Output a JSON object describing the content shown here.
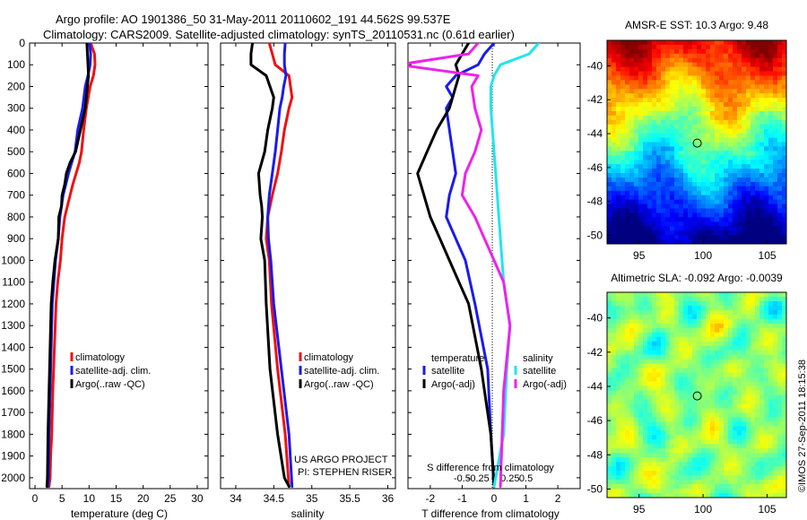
{
  "header": {
    "line1": "Argo profile: AO 1901386_50 31-May-2011 20110602_191 44.562S 99.537E",
    "line2": "Climatology: CARS2009. Satellite-adjusted climatology: synTS_20110531.nc (0.61d earlier)"
  },
  "stamp": "©IMOS 27-Sep-2011 18:15:38",
  "colors": {
    "climatology": "#ee1111",
    "satellite": "#1a1aee",
    "argo": "#000000",
    "sal_satellite": "#22e5ee",
    "sal_argo": "#ee22ee"
  },
  "chart_data": [
    {
      "type": "line",
      "panel": "temperature",
      "xlabel": "temperature (deg C)",
      "ylabel": "",
      "xlim": [
        -1,
        32
      ],
      "ylim": [
        2050,
        0
      ],
      "y_reversed": true,
      "xticks": [
        0,
        5,
        10,
        15,
        20,
        25,
        30
      ],
      "yticks": [
        0,
        100,
        200,
        300,
        400,
        500,
        600,
        700,
        800,
        900,
        1000,
        1100,
        1200,
        1300,
        1400,
        1500,
        1600,
        1700,
        1800,
        1900,
        2000
      ],
      "legend": {
        "position": "lower-middle",
        "entries": [
          "climatology",
          "satellite-adj. clim.",
          "Argo(..raw -QC)"
        ]
      },
      "series": [
        {
          "name": "climatology",
          "color": "#ee1111",
          "x": [
            10.3,
            11.0,
            11.1,
            10.8,
            10.2,
            9.5,
            9.0,
            8.6,
            8.2,
            7.6,
            7.0,
            6.5,
            6.0,
            5.5,
            5.0,
            4.7,
            4.2,
            3.9,
            3.6,
            3.3,
            3.1,
            2.9,
            2.8,
            2.6
          ],
          "y": [
            0,
            50,
            100,
            150,
            200,
            300,
            400,
            500,
            550,
            600,
            650,
            700,
            750,
            800,
            900,
            1000,
            1100,
            1200,
            1400,
            1600,
            1800,
            1900,
            2000,
            2040
          ]
        },
        {
          "name": "satellite-adj. clim.",
          "color": "#1a1aee",
          "x": [
            10.1,
            10.3,
            10.2,
            9.8,
            9.3,
            8.8,
            7.9,
            7.4,
            6.8,
            6.2,
            5.7,
            5.2,
            4.9,
            4.6,
            4.3,
            3.8,
            3.5,
            3.2,
            3.0,
            2.8,
            2.6,
            2.5,
            2.4
          ],
          "y": [
            0,
            50,
            100,
            150,
            200,
            300,
            400,
            500,
            550,
            600,
            650,
            700,
            750,
            800,
            900,
            1000,
            1100,
            1200,
            1400,
            1600,
            1800,
            2000,
            2040
          ]
        },
        {
          "name": "Argo(..raw -QC)",
          "color": "#000000",
          "x": [
            9.6,
            9.7,
            9.8,
            9.9,
            9.7,
            9.3,
            8.4,
            7.5,
            6.5,
            5.8,
            5.5,
            5.0,
            4.9,
            4.4,
            4.3,
            3.7,
            3.3,
            3.0,
            2.8,
            2.6,
            2.4,
            2.3,
            2.2
          ],
          "y": [
            0,
            50,
            100,
            150,
            200,
            300,
            400,
            500,
            550,
            600,
            650,
            700,
            750,
            800,
            900,
            1000,
            1100,
            1200,
            1400,
            1600,
            1800,
            2000,
            2040
          ]
        }
      ]
    },
    {
      "type": "line",
      "panel": "salinity",
      "xlabel": "salinity",
      "ylabel": "",
      "xlim": [
        33.8,
        36.1
      ],
      "ylim": [
        2050,
        0
      ],
      "y_reversed": true,
      "xticks": [
        34,
        34.5,
        35,
        35.5,
        36
      ],
      "tick_labels": [
        "34",
        "34.5",
        "35",
        "35.5",
        "36"
      ],
      "legend": {
        "position": "lower-right",
        "entries": [
          "climatology",
          "satellite-adj. clim.",
          "Argo(..raw -QC)"
        ]
      },
      "annotation": [
        "US ARGO PROJECT",
        "PI: STEPHEN RISER"
      ],
      "series": [
        {
          "name": "climatology",
          "color": "#ee1111",
          "x": [
            34.44,
            34.48,
            34.52,
            34.7,
            34.72,
            34.74,
            34.7,
            34.64,
            34.6,
            34.55,
            34.48,
            34.42,
            34.4,
            34.44,
            34.47,
            34.55,
            34.65,
            34.7
          ],
          "y": [
            0,
            50,
            100,
            150,
            200,
            250,
            300,
            400,
            500,
            600,
            700,
            800,
            900,
            1000,
            1200,
            1500,
            1800,
            2040
          ]
        },
        {
          "name": "satellite-adj. clim.",
          "color": "#1a1aee",
          "x": [
            34.65,
            34.64,
            34.64,
            34.66,
            34.63,
            34.61,
            34.58,
            34.55,
            34.52,
            34.48,
            34.44,
            34.42,
            34.43,
            34.46,
            34.5,
            34.6,
            34.7,
            34.74
          ],
          "y": [
            0,
            50,
            100,
            150,
            200,
            250,
            300,
            400,
            500,
            600,
            700,
            800,
            900,
            1000,
            1200,
            1500,
            1800,
            2040
          ]
        },
        {
          "name": "Argo(..raw -QC)",
          "color": "#000000",
          "x": [
            34.22,
            34.2,
            34.2,
            34.4,
            34.45,
            34.5,
            34.48,
            34.42,
            34.38,
            34.3,
            34.32,
            34.34,
            34.35,
            34.33,
            34.38,
            34.4,
            34.45,
            34.55,
            34.64,
            34.7
          ],
          "y": [
            0,
            50,
            100,
            150,
            200,
            250,
            300,
            400,
            500,
            600,
            700,
            750,
            800,
            900,
            1000,
            1200,
            1500,
            1800,
            2000,
            2040
          ]
        }
      ]
    },
    {
      "type": "line",
      "panel": "difference",
      "xlabel": "T difference from climatology",
      "xlabel2": "S difference from climatology",
      "ylabel": "",
      "xlim": [
        -2.7,
        2.7
      ],
      "ylim": [
        2050,
        0
      ],
      "y_reversed": true,
      "xticks": [
        -2,
        -1,
        0,
        1,
        2
      ],
      "tick_labels": [
        "-2",
        "-1",
        "0",
        "1",
        "2"
      ],
      "xticks2_labels": [
        "-0.5",
        "-0.25",
        "0",
        "0.25",
        "0.5"
      ],
      "legend": {
        "position": "lower-middle",
        "groups": [
          "temperature",
          "salinity"
        ],
        "entries": [
          "satellite",
          "Argo(-adj)",
          "satellite",
          "Argo(-adj)"
        ]
      },
      "series": [
        {
          "name": "satellite",
          "group": "temperature",
          "color": "#1a1aee",
          "x": [
            0.0,
            -0.3,
            -0.5,
            -1.2,
            -1.5,
            -1.3,
            -1.5,
            -1.3,
            -1.2,
            -1.4,
            -1.5,
            -1.2,
            -0.9,
            -0.6,
            -0.2,
            -0.1,
            0.0
          ],
          "y": [
            0,
            50,
            100,
            150,
            200,
            250,
            300,
            500,
            600,
            700,
            800,
            900,
            1000,
            1200,
            1500,
            1800,
            2040
          ]
        },
        {
          "name": "Argo(-adj)",
          "group": "temperature",
          "color": "#000000",
          "x": [
            -0.8,
            -1.0,
            -1.2,
            -1.1,
            -1.2,
            -1.4,
            -1.8,
            -2.1,
            -2.4,
            -2.2,
            -2.0,
            -1.7,
            -1.4,
            -1.1,
            -0.8,
            -0.4,
            -0.1,
            0.0
          ],
          "y": [
            0,
            50,
            100,
            150,
            200,
            300,
            400,
            500,
            600,
            700,
            800,
            900,
            1000,
            1100,
            1200,
            1500,
            1800,
            2040
          ]
        },
        {
          "name": "satellite",
          "group": "salinity",
          "color": "#22e5ee",
          "x": [
            1.4,
            1.1,
            0.2,
            0.0,
            -0.1,
            -0.1,
            0.0,
            0.1,
            0.2,
            0.3,
            0.4,
            0.5,
            0.4,
            0.3,
            0.0
          ],
          "y": [
            0,
            50,
            100,
            150,
            200,
            300,
            500,
            700,
            900,
            1100,
            1200,
            1300,
            1500,
            1800,
            2040
          ]
        },
        {
          "name": "Argo(-adj)",
          "group": "salinity",
          "color": "#ee22ee",
          "x": [
            -0.5,
            -0.8,
            -3.0,
            -0.5,
            -0.7,
            -0.6,
            -0.4,
            -0.6,
            -0.9,
            -1.0,
            -0.6,
            -0.3,
            0.0,
            0.3,
            0.5,
            0.3,
            0.2
          ],
          "y": [
            0,
            50,
            100,
            150,
            200,
            300,
            400,
            500,
            600,
            700,
            800,
            900,
            1000,
            1100,
            1300,
            1600,
            2040
          ]
        }
      ]
    },
    {
      "type": "heatmap",
      "panel": "sst",
      "title": "AMSR-E SST: 10.3 Argo: 9.48",
      "xlim": [
        92.5,
        106.5
      ],
      "ylim": [
        -50.5,
        -38.5
      ],
      "xticks": [
        95,
        100,
        105
      ],
      "yticks": [
        -40,
        -42,
        -44,
        -46,
        -48,
        -50
      ],
      "marker": [
        99.54,
        -44.56
      ]
    },
    {
      "type": "heatmap",
      "panel": "sla",
      "title": "Altimetric SLA: -0.092 Argo: -0.0039",
      "xlim": [
        92.5,
        106.5
      ],
      "ylim": [
        -50.5,
        -38.5
      ],
      "xticks": [
        95,
        100,
        105
      ],
      "yticks": [
        -40,
        -42,
        -44,
        -46,
        -48,
        -50
      ],
      "marker": [
        99.54,
        -44.56
      ]
    }
  ]
}
